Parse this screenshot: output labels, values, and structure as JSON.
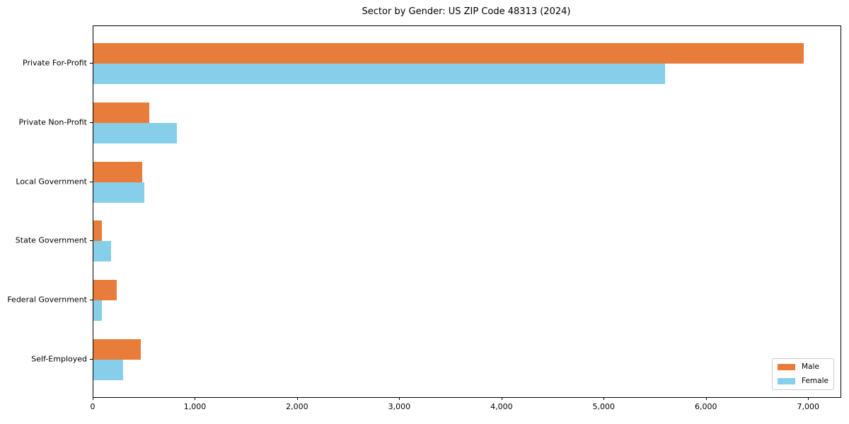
{
  "figure": {
    "title": "Sector by Gender: US ZIP Code 48313 (2024)"
  },
  "colors": {
    "male": "#e87d3b",
    "female": "#87ceeb",
    "axis": "#000000",
    "legend_border": "#cccccc",
    "background": "#ffffff"
  },
  "legend": {
    "position": "lower right",
    "entries": [
      "Male",
      "Female"
    ]
  },
  "chart_data": {
    "type": "bar",
    "orientation": "horizontal",
    "title": "Sector by Gender: US ZIP Code 48313 (2024)",
    "categories": [
      "Private For-Profit",
      "Private Non-Profit",
      "Local Government",
      "State Government",
      "Federal Government",
      "Self-Employed"
    ],
    "series": [
      {
        "name": "Male",
        "color": "#e87d3b",
        "values": [
          6950,
          545,
          480,
          80,
          230,
          465
        ]
      },
      {
        "name": "Female",
        "color": "#87ceeb",
        "values": [
          5590,
          815,
          500,
          170,
          80,
          290
        ]
      }
    ],
    "xlabel": "",
    "ylabel": "",
    "xlim": [
      0,
      7310
    ],
    "xticks": [
      0,
      1000,
      2000,
      3000,
      4000,
      5000,
      6000,
      7000
    ],
    "xtick_labels": [
      "0",
      "1,000",
      "2,000",
      "3,000",
      "4,000",
      "5,000",
      "6,000",
      "7,000"
    ],
    "grid": false,
    "legend_position": "lower right"
  }
}
